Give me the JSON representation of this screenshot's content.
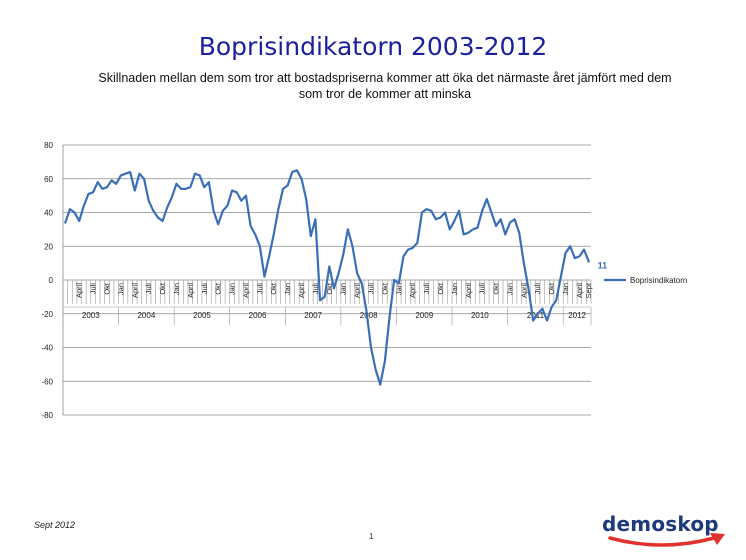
{
  "title": "Boprisindikatorn 2003-2012",
  "subtitle": "Skillnaden mellan dem som tror att bostadspriserna kommer att öka det närmaste året jämfört med dem som tror de kommer att minska",
  "footer": {
    "date": "Sept 2012",
    "page": "1",
    "logo": "demoskop"
  },
  "colors": {
    "title": "#1a1f9c",
    "series": "#3a6fb7",
    "logo": "#1e3a7b",
    "accent": "#e0312d"
  },
  "chart_data": {
    "type": "line",
    "title": "",
    "xlabel": "",
    "ylabel": "",
    "ylim": [
      -80,
      80
    ],
    "yticks": [
      80,
      60,
      40,
      20,
      0,
      -20,
      -40,
      -60,
      -80
    ],
    "grid": true,
    "legend_position": "right",
    "last_value_label": "11",
    "month_labels": [
      "April",
      "Juli",
      "Okt",
      "Jan"
    ],
    "last_month_label": "Sept",
    "years": [
      "2003",
      "2004",
      "2005",
      "2006",
      "2007",
      "2008",
      "2009",
      "2010",
      "2011",
      "2012"
    ],
    "series": [
      {
        "name": "Boprisindikatorn",
        "values": [
          34,
          42,
          40,
          35,
          44,
          51,
          52,
          58,
          54,
          55,
          59,
          57,
          62,
          63,
          64,
          53,
          63,
          60,
          47,
          41,
          37,
          35,
          43,
          49,
          57,
          54,
          54,
          55,
          63,
          62,
          55,
          58,
          41,
          33,
          41,
          44,
          53,
          52,
          47,
          50,
          32,
          27,
          20,
          2,
          14,
          27,
          42,
          54,
          56,
          64,
          65,
          60,
          48,
          26,
          36,
          -12,
          -10,
          8,
          -5,
          4,
          15,
          30,
          20,
          4,
          -2,
          -18,
          -40,
          -53,
          -62,
          -48,
          -22,
          0,
          -2,
          14,
          18,
          19,
          22,
          40,
          42,
          41,
          36,
          37,
          40,
          30,
          35,
          41,
          27,
          28,
          30,
          31,
          41,
          48,
          40,
          32,
          36,
          27,
          34,
          36,
          28,
          10,
          -5,
          -24,
          -20,
          -17,
          -24,
          -16,
          -12,
          2,
          16,
          20,
          13,
          14,
          18,
          11
        ]
      }
    ]
  }
}
